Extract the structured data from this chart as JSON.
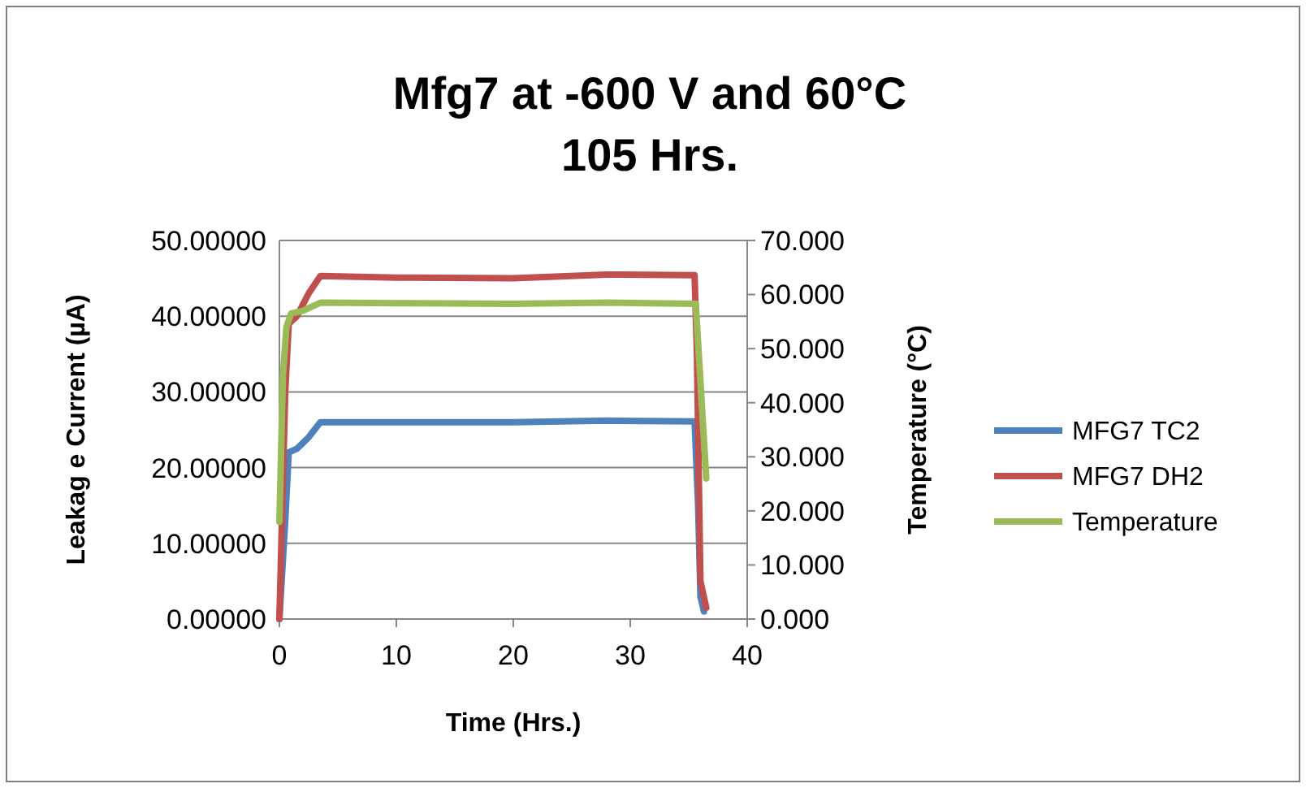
{
  "chart_data": {
    "type": "line",
    "title": "Mfg7 at -600 V and 60°C",
    "subtitle": "105 Hrs.",
    "xlabel": "Time (Hrs.)",
    "ylabel": "Leakag e Current (µA)",
    "y2label": "Temperature (°C)",
    "xlim": [
      0,
      40
    ],
    "xticks": [
      0,
      10,
      20,
      30,
      40
    ],
    "ylim": [
      0,
      50
    ],
    "yticks": [
      {
        "value": 0,
        "label": "0.00000"
      },
      {
        "value": 10,
        "label": "10.00000"
      },
      {
        "value": 20,
        "label": "20.00000"
      },
      {
        "value": 30,
        "label": "30.00000"
      },
      {
        "value": 40,
        "label": "40.00000"
      },
      {
        "value": 50,
        "label": "50.00000"
      }
    ],
    "y2lim": [
      0,
      70
    ],
    "y2ticks": [
      {
        "value": 0,
        "label": "0.000"
      },
      {
        "value": 10,
        "label": "10.000"
      },
      {
        "value": 20,
        "label": "20.000"
      },
      {
        "value": 30,
        "label": "30.000"
      },
      {
        "value": 40,
        "label": "40.000"
      },
      {
        "value": 50,
        "label": "50.000"
      },
      {
        "value": 60,
        "label": "60.000"
      },
      {
        "value": 70,
        "label": "70.000"
      }
    ],
    "grid": "y",
    "legend": "right",
    "marker": "none",
    "line_style": "solid",
    "series": [
      {
        "name": "MFG7 TC2",
        "color": "#4f81bd",
        "x": [
          0,
          0.5,
          0.8,
          1.5,
          2.5,
          3.5,
          10,
          20,
          28,
          35.5,
          35.8,
          36,
          36.3
        ],
        "values": [
          0,
          13,
          22,
          22.5,
          24,
          26,
          26,
          26,
          26.2,
          26.1,
          15,
          3,
          1
        ]
      },
      {
        "name": "MFG7 DH2",
        "color": "#c0504d",
        "x": [
          0,
          0.5,
          0.8,
          1.5,
          2.5,
          3.5,
          10,
          20,
          28,
          35.5,
          35.7,
          36,
          36.5
        ],
        "values": [
          0,
          30,
          39,
          40,
          43,
          45.3,
          45.1,
          45,
          45.5,
          45.4,
          35,
          5,
          1.5
        ]
      },
      {
        "name": "Temperature",
        "color": "#9bbb59",
        "axis": "y2",
        "x": [
          0,
          0.3,
          0.6,
          1,
          2,
          3.5,
          10,
          20,
          28,
          35.6,
          36.5
        ],
        "values": [
          18,
          45,
          54,
          56.5,
          57,
          58.5,
          58.4,
          58.3,
          58.5,
          58.3,
          26
        ]
      }
    ]
  }
}
